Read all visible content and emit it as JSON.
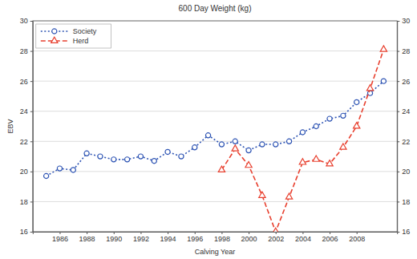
{
  "chart_data": {
    "type": "line",
    "title": "600 Day Weight (kg)",
    "x_label": "Calving Year",
    "y_label": "EBV",
    "x": [
      1985,
      1986,
      1987,
      1988,
      1989,
      1990,
      1991,
      1992,
      1993,
      1994,
      1995,
      1996,
      1997,
      1998,
      1999,
      2000,
      2001,
      2002,
      2003,
      2004,
      2005,
      2006,
      2007,
      2008,
      2009,
      2010
    ],
    "series": [
      {
        "name": "Society",
        "color": "#2f55b4",
        "marker": "circle",
        "line_style": "dotted",
        "values": [
          19.7,
          20.2,
          20.1,
          21.2,
          21.0,
          20.8,
          20.8,
          21.0,
          20.7,
          21.3,
          21.0,
          21.6,
          22.4,
          21.8,
          22.0,
          21.4,
          21.8,
          21.8,
          22.0,
          22.6,
          23.0,
          23.5,
          23.7,
          24.6,
          25.2,
          26.0
        ]
      },
      {
        "name": "Herd",
        "color": "#e8402f",
        "marker": "triangle",
        "line_style": "dashed",
        "values": [
          null,
          null,
          null,
          null,
          null,
          null,
          null,
          null,
          null,
          null,
          null,
          null,
          null,
          20.1,
          21.5,
          20.4,
          18.4,
          16.0,
          18.3,
          20.6,
          20.8,
          20.5,
          21.6,
          23.0,
          25.5,
          28.1
        ]
      }
    ],
    "xlim": [
      1984,
      2011
    ],
    "xticks": [
      1986,
      1988,
      1990,
      1992,
      1994,
      1996,
      1998,
      2000,
      2002,
      2004,
      2006,
      2008
    ],
    "ylim": [
      16,
      30
    ],
    "yticks": [
      16,
      18,
      20,
      22,
      24,
      26,
      28,
      30
    ],
    "y2lim": [
      16,
      30
    ],
    "y2ticks": [
      16,
      18,
      20,
      22,
      24,
      26,
      28,
      30
    ],
    "grid": true,
    "legend": "top-left"
  }
}
